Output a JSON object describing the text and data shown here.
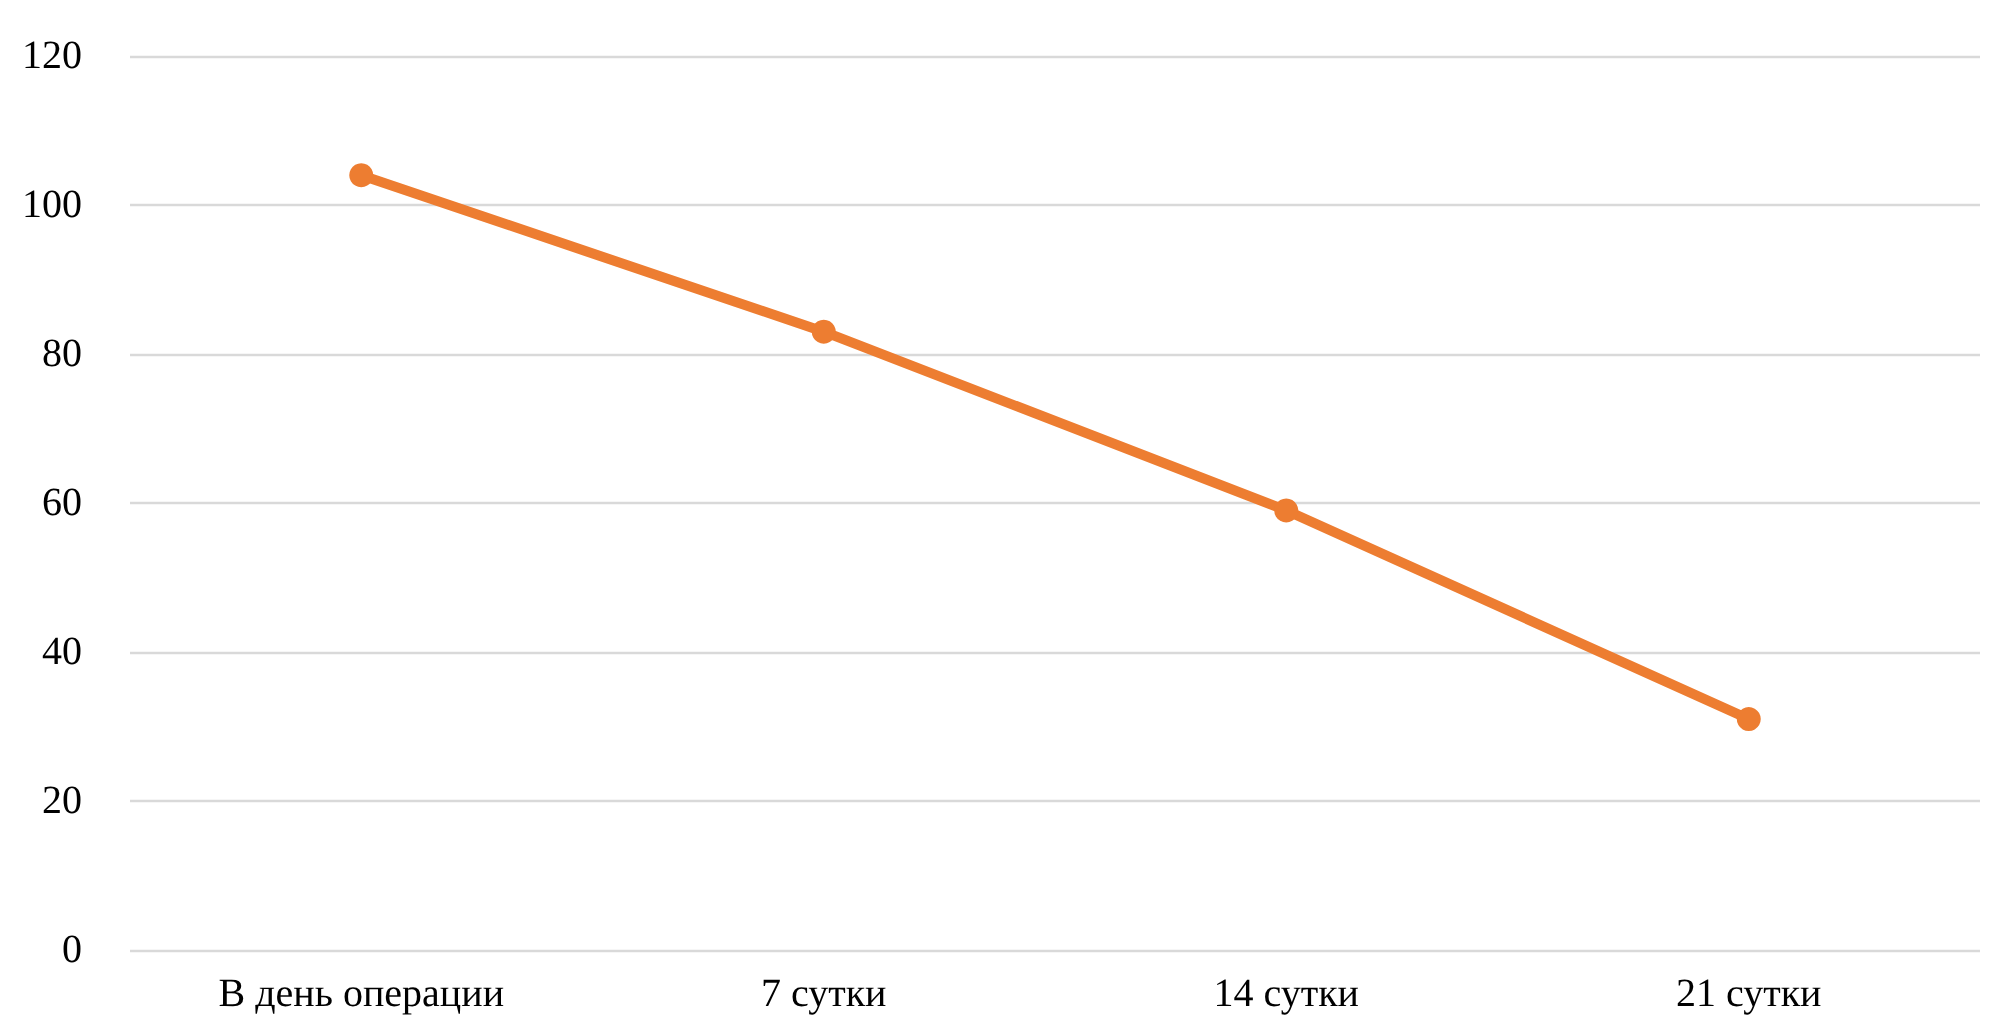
{
  "chart_data": {
    "type": "line",
    "categories": [
      "В день операции",
      "7 сутки",
      "14 сутки",
      "21 сутки"
    ],
    "series": [
      {
        "color": "#ed7d31",
        "values": [
          104,
          83,
          59,
          31
        ]
      }
    ],
    "ylim": [
      0,
      120
    ],
    "yticks": [
      0,
      20,
      40,
      60,
      80,
      100,
      120
    ],
    "grid": "y",
    "marker": "circle",
    "line_style": "solid"
  }
}
